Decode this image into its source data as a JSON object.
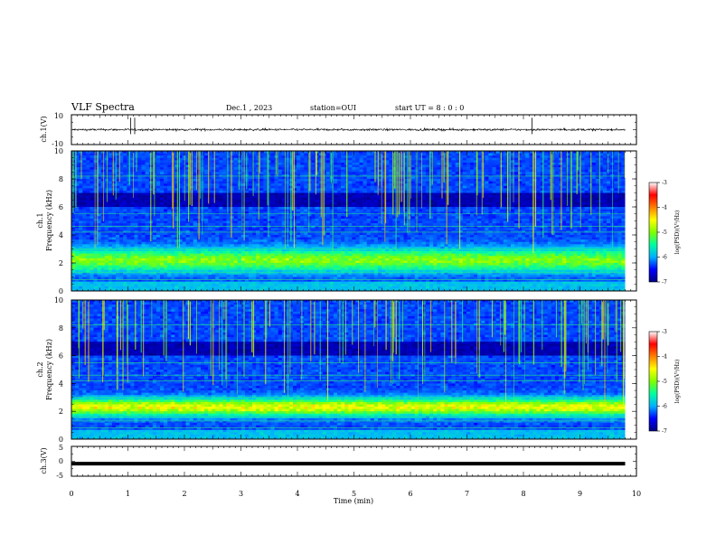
{
  "header": {
    "title": "VLF Spectra",
    "date": "Dec.1  , 2023",
    "station": "station=OUI",
    "start": "start  UT =   8  : 0   : 0"
  },
  "chart_data": [
    {
      "type": "line",
      "name": "waveform-ch1",
      "ylabel": "ch.1(V)",
      "ylim": [
        -10,
        10
      ],
      "yticks": [
        "10",
        "-10"
      ],
      "xlim": [
        0,
        10
      ],
      "baseline": 0,
      "noise_amplitude": 1.2,
      "signal_end_x": 9.8
    },
    {
      "type": "heatmap",
      "name": "spectrogram-ch1",
      "ylabel_line1": "ch.1",
      "ylabel_line2": "Frequency (kHz)",
      "ylim": [
        0,
        10
      ],
      "yticks": [
        "0",
        "2",
        "4",
        "6",
        "8",
        "10"
      ],
      "xlim": [
        0,
        10
      ],
      "signal_end_x": 9.8,
      "band_center_khz": 2.2,
      "band_width_khz": 0.8,
      "band_level": -5.0,
      "colorbar": {
        "label": "log(PSD)(V²/Hz)",
        "range": [
          -7,
          -3
        ],
        "ticks": [
          "-3",
          "-4",
          "-5",
          "-6",
          "-7"
        ],
        "colors": [
          "#000080",
          "#0000ff",
          "#00b0ff",
          "#00ffa0",
          "#80ff00",
          "#ffff00",
          "#ff8000",
          "#ff0000",
          "#ffffff"
        ]
      }
    },
    {
      "type": "heatmap",
      "name": "spectrogram-ch2",
      "ylabel_line1": "ch.2",
      "ylabel_line2": "Frequency (kHz)",
      "ylim": [
        0,
        10
      ],
      "yticks": [
        "0",
        "2",
        "4",
        "6",
        "8",
        "10"
      ],
      "xlim": [
        0,
        10
      ],
      "signal_end_x": 9.8,
      "band_center_khz": 2.3,
      "band_width_khz": 0.6,
      "band_level": -4.6,
      "colorbar": {
        "label": "log(PSD)(V²/Hz)",
        "range": [
          -7,
          -3
        ],
        "ticks": [
          "-3",
          "-4",
          "-5",
          "-6",
          "-7"
        ],
        "colors": [
          "#000080",
          "#0000ff",
          "#00b0ff",
          "#00ffa0",
          "#80ff00",
          "#ffff00",
          "#ff8000",
          "#ff0000",
          "#ffffff"
        ]
      }
    },
    {
      "type": "line",
      "name": "waveform-ch3",
      "ylabel": "ch.3(V)",
      "ylim": [
        -5,
        5
      ],
      "yticks": [
        "5",
        "0",
        "-5"
      ],
      "xlim": [
        0,
        10
      ],
      "baseline": -0.8,
      "signal_end_x": 9.8
    }
  ],
  "x_axis": {
    "label": "Time (min)",
    "ticks": [
      "0",
      "1",
      "2",
      "3",
      "4",
      "5",
      "6",
      "7",
      "8",
      "9",
      "10"
    ]
  }
}
